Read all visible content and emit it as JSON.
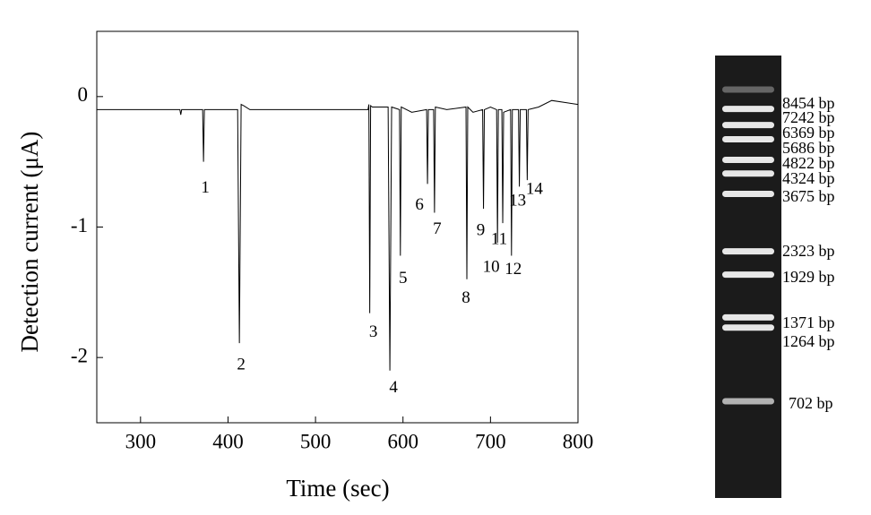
{
  "chart_data": {
    "type": "line",
    "xlabel": "Time (sec)",
    "ylabel": "Detection current (μA)",
    "x": [
      250,
      345,
      346,
      347,
      371,
      372,
      373,
      411,
      413,
      415,
      418,
      425,
      560,
      561,
      562,
      563,
      565,
      583,
      585,
      587,
      596,
      597,
      598,
      610,
      627,
      628,
      629,
      635,
      636,
      637,
      650,
      672,
      673,
      674,
      680,
      691,
      692,
      693,
      700,
      707,
      708,
      709,
      713,
      714,
      715,
      723,
      724,
      725,
      732,
      733,
      734,
      741,
      742,
      743,
      755,
      770,
      800
    ],
    "series": [
      {
        "color": "#000000",
        "values": [
          -0.1,
          -0.1,
          -0.14,
          -0.1,
          -0.1,
          -0.5,
          -0.1,
          -0.1,
          -1.89,
          -0.06,
          -0.07,
          -0.1,
          -0.1,
          -0.06,
          -1.66,
          -0.07,
          -0.08,
          -0.08,
          -2.1,
          -0.08,
          -0.1,
          -1.22,
          -0.08,
          -0.12,
          -0.1,
          -0.67,
          -0.1,
          -0.1,
          -0.89,
          -0.08,
          -0.1,
          -0.08,
          -1.4,
          -0.08,
          -0.12,
          -0.1,
          -0.86,
          -0.1,
          -0.08,
          -0.1,
          -1.12,
          -0.1,
          -0.1,
          -0.97,
          -0.12,
          -0.1,
          -1.22,
          -0.1,
          -0.1,
          -0.69,
          -0.1,
          -0.1,
          -0.64,
          -0.1,
          -0.08,
          -0.03,
          -0.06
        ]
      }
    ],
    "annotations": [
      {
        "text": "1",
        "x": 372,
        "y": -0.5
      },
      {
        "text": "2",
        "x": 413,
        "y": -1.89
      },
      {
        "text": "3",
        "x": 562,
        "y": -1.66
      },
      {
        "text": "4",
        "x": 585,
        "y": -2.1
      },
      {
        "text": "5",
        "x": 597,
        "y": -1.22
      },
      {
        "text": "6",
        "x": 628,
        "y": -0.67
      },
      {
        "text": "7",
        "x": 636,
        "y": -0.89
      },
      {
        "text": "8",
        "x": 673,
        "y": -1.4
      },
      {
        "text": "9",
        "x": 692,
        "y": -0.86
      },
      {
        "text": "10",
        "x": 708,
        "y": -1.12
      },
      {
        "text": "11",
        "x": 714,
        "y": -0.97
      },
      {
        "text": "12",
        "x": 724,
        "y": -1.22
      },
      {
        "text": "13",
        "x": 733,
        "y": -0.69
      },
      {
        "text": "14",
        "x": 742,
        "y": -0.64
      }
    ],
    "xlim": [
      250,
      800
    ],
    "xticks": [
      300,
      400,
      500,
      600,
      700,
      800
    ],
    "ylim": [
      -2.5,
      0.5
    ],
    "yticks": [
      0,
      -1,
      -2
    ]
  },
  "gel": {
    "bands": [
      {
        "value": 8454,
        "label": "8454 bp"
      },
      {
        "value": 7242,
        "label": "7242 bp"
      },
      {
        "value": 6369,
        "label": "6369 bp"
      },
      {
        "value": 5686,
        "label": "5686 bp"
      },
      {
        "value": 4822,
        "label": "4822 bp"
      },
      {
        "value": 4324,
        "label": "4324 bp"
      },
      {
        "value": 3675,
        "label": "3675 bp"
      },
      {
        "value": 2323,
        "label": "2323 bp"
      },
      {
        "value": 1929,
        "label": "1929 bp"
      },
      {
        "value": 1371,
        "label": "1371 bp"
      },
      {
        "value": 1264,
        "label": "1264 bp"
      },
      {
        "value": 702,
        "label": "702 bp"
      }
    ]
  }
}
